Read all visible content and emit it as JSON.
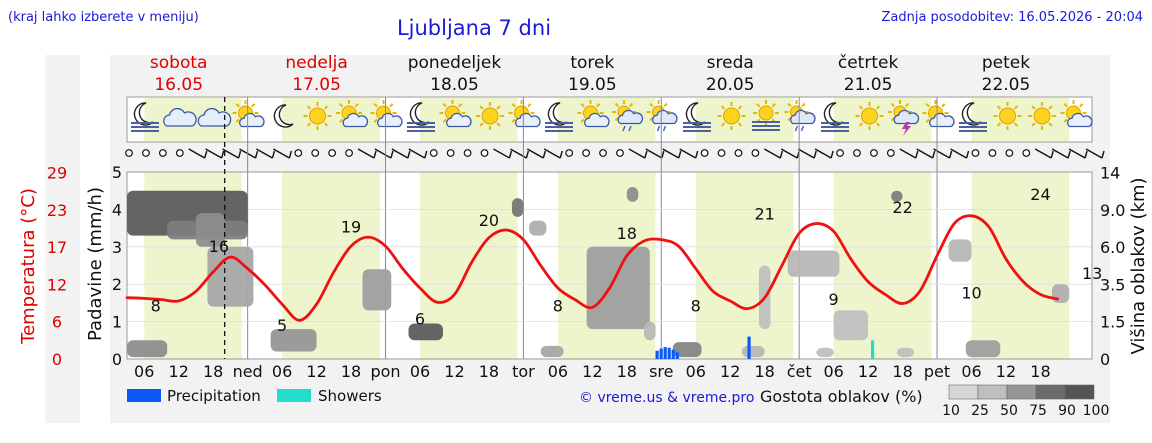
{
  "header": {
    "region_note": "(kraj lahko izberete v meniju)",
    "title": "Ljubljana 7 dni",
    "updated": "Zadnja posodobitev: 16.05.2026 - 20:04"
  },
  "chart_data": {
    "type": "line",
    "x_unit": "hours since 16.05 00:00",
    "days": [
      {
        "name": "sobota",
        "date": "16.05",
        "weekend": true,
        "abbr": ""
      },
      {
        "name": "nedelja",
        "date": "17.05",
        "weekend": true,
        "abbr": "ned"
      },
      {
        "name": "ponedeljek",
        "date": "18.05",
        "weekend": false,
        "abbr": "pon"
      },
      {
        "name": "torek",
        "date": "19.05",
        "weekend": false,
        "abbr": "tor"
      },
      {
        "name": "sreda",
        "date": "20.05",
        "weekend": false,
        "abbr": "sre"
      },
      {
        "name": "četrtek",
        "date": "21.05",
        "weekend": false,
        "abbr": "čet"
      },
      {
        "name": "petek",
        "date": "22.05",
        "weekend": false,
        "abbr": "pet"
      }
    ],
    "hour_ticks": [
      "06",
      "12",
      "18"
    ],
    "now_hour": 20,
    "x_range": [
      3,
      165
    ],
    "left_axis_label": "Padavine (mm/h)",
    "left_ticks": [
      "0",
      "1",
      "2",
      "3",
      "4",
      "5"
    ],
    "temp_axis_label": "Temperatura (°C)",
    "temp_ticks": [
      "0",
      "6",
      "12",
      "17",
      "23",
      "29"
    ],
    "right_axis_label": "Višina oblakov (km)",
    "right_ticks": [
      "0",
      "1.5",
      "3.5",
      "6.0",
      "9.0",
      "14"
    ],
    "series": [
      {
        "name": "Temperatura",
        "color": "#ee1111",
        "x": [
          3,
          6,
          9,
          12,
          15,
          18,
          21,
          24,
          27,
          30,
          33,
          36,
          39,
          42,
          45,
          48,
          51,
          54,
          57,
          60,
          63,
          66,
          69,
          72,
          75,
          78,
          81,
          84,
          87,
          90,
          93,
          96,
          99,
          102,
          105,
          108,
          111,
          114,
          117,
          120,
          123,
          126,
          129,
          132,
          135,
          138,
          141,
          144,
          147,
          150,
          153,
          156,
          159,
          162,
          165
        ],
        "y": [
          9.5,
          9.4,
          9.2,
          9.0,
          10.5,
          13.5,
          15.8,
          14.0,
          11.5,
          8.5,
          6.0,
          8.5,
          13.5,
          17.5,
          18.9,
          17.5,
          14.0,
          11.0,
          8.8,
          10.0,
          15.0,
          18.8,
          20.0,
          18.5,
          14.5,
          11.0,
          9.2,
          8.0,
          11.0,
          16.0,
          18.3,
          18.5,
          17.5,
          14.0,
          10.5,
          9.0,
          7.8,
          9.5,
          14.5,
          19.5,
          21.0,
          19.8,
          15.5,
          12.0,
          10.0,
          8.6,
          10.5,
          16.0,
          21.0,
          22.2,
          20.5,
          15.5,
          12.0,
          10.0,
          9.3
        ],
        "labels": [
          {
            "x": 8,
            "value": "8"
          },
          {
            "x": 19,
            "value": "16"
          },
          {
            "x": 30,
            "value": "5"
          },
          {
            "x": 42,
            "value": "19"
          },
          {
            "x": 54,
            "value": "6"
          },
          {
            "x": 66,
            "value": "20"
          },
          {
            "x": 78,
            "value": "8"
          },
          {
            "x": 90,
            "value": "18"
          },
          {
            "x": 102,
            "value": "8"
          },
          {
            "x": 114,
            "value": "21"
          },
          {
            "x": 126,
            "value": "9"
          },
          {
            "x": 138,
            "value": "22"
          },
          {
            "x": 150,
            "value": "10"
          },
          {
            "x": 162,
            "value": "24"
          },
          {
            "x": 171,
            "value": "13"
          }
        ]
      },
      {
        "name": "Precipitation",
        "color": "#0a5af5",
        "x": [
          95,
          95.7,
          96.4,
          97.1,
          97.8,
          98.5,
          111
        ],
        "y": [
          0.22,
          0.28,
          0.32,
          0.3,
          0.25,
          0.18,
          0.6
        ]
      },
      {
        "name": "Showers",
        "color": "#22dccc",
        "x": [
          132.5
        ],
        "y": [
          0.5
        ]
      }
    ],
    "clouds": [
      {
        "x": 3,
        "y": 3.3,
        "w": 21,
        "h": 1.2,
        "density": 85
      },
      {
        "x": 10,
        "y": 3.2,
        "w": 14,
        "h": 0.5,
        "density": 65
      },
      {
        "x": 15,
        "y": 3.0,
        "w": 5,
        "h": 0.9,
        "density": 55
      },
      {
        "x": 17,
        "y": 1.4,
        "w": 8,
        "h": 1.6,
        "density": 40
      },
      {
        "x": 3,
        "y": 0.05,
        "w": 7,
        "h": 0.45,
        "density": 55
      },
      {
        "x": 28,
        "y": 0.2,
        "w": 8,
        "h": 0.6,
        "density": 50
      },
      {
        "x": 44,
        "y": 1.3,
        "w": 5,
        "h": 1.1,
        "density": 45
      },
      {
        "x": 52,
        "y": 0.5,
        "w": 6,
        "h": 0.45,
        "density": 85
      },
      {
        "x": 70,
        "y": 3.8,
        "w": 2,
        "h": 0.5,
        "density": 70
      },
      {
        "x": 73,
        "y": 3.3,
        "w": 3,
        "h": 0.4,
        "density": 35
      },
      {
        "x": 90,
        "y": 4.2,
        "w": 2,
        "h": 0.4,
        "density": 55
      },
      {
        "x": 83,
        "y": 0.8,
        "w": 11,
        "h": 2.2,
        "density": 45
      },
      {
        "x": 93,
        "y": 0.5,
        "w": 2,
        "h": 0.5,
        "density": 30
      },
      {
        "x": 75,
        "y": 0.05,
        "w": 4,
        "h": 0.3,
        "density": 40
      },
      {
        "x": 98,
        "y": 0.05,
        "w": 5,
        "h": 0.4,
        "density": 60
      },
      {
        "x": 118,
        "y": 2.2,
        "w": 9,
        "h": 0.7,
        "density": 30
      },
      {
        "x": 113,
        "y": 0.8,
        "w": 2,
        "h": 1.7,
        "density": 25
      },
      {
        "x": 110,
        "y": 0.05,
        "w": 4,
        "h": 0.3,
        "density": 30
      },
      {
        "x": 126,
        "y": 0.5,
        "w": 6,
        "h": 0.8,
        "density": 25
      },
      {
        "x": 136,
        "y": 4.2,
        "w": 2,
        "h": 0.3,
        "density": 65
      },
      {
        "x": 146,
        "y": 2.6,
        "w": 4,
        "h": 0.6,
        "density": 30
      },
      {
        "x": 149,
        "y": 0.05,
        "w": 6,
        "h": 0.45,
        "density": 45
      },
      {
        "x": 164,
        "y": 1.5,
        "w": 3,
        "h": 0.5,
        "density": 35
      },
      {
        "x": 123,
        "y": 0.05,
        "w": 3,
        "h": 0.25,
        "density": 25
      },
      {
        "x": 137,
        "y": 0.05,
        "w": 3,
        "h": 0.25,
        "density": 25
      }
    ],
    "weather_icons": [
      "moon-fog",
      "cloud",
      "cloud",
      "sun-cloud",
      "moon",
      "sun",
      "sun-cloud",
      "sun-cloud",
      "moon-fog",
      "sun-cloud",
      "sun",
      "sun-cloud",
      "moon-fog",
      "sun-cloud",
      "rain-cloud",
      "rain-cloud",
      "moon-fog",
      "sun",
      "sun-fog",
      "rain-cloud",
      "moon-fog",
      "sun",
      "thunder",
      "sun-cloud",
      "moon-fog",
      "sun",
      "sun",
      "sun-cloud"
    ],
    "wind_symbols": [
      "calm",
      "calm",
      "calm",
      "calm",
      "barb",
      "barb",
      "barb",
      "barb",
      "barb",
      "barb",
      "calm",
      "calm",
      "calm",
      "calm",
      "barb",
      "barb",
      "barb",
      "barb",
      "calm",
      "calm",
      "calm",
      "calm",
      "barb",
      "barb",
      "barb",
      "barb",
      "calm",
      "calm",
      "calm",
      "calm",
      "barb",
      "barb",
      "barb",
      "barb",
      "calm",
      "calm",
      "calm",
      "calm",
      "barb",
      "barb",
      "barb",
      "barb",
      "calm",
      "calm",
      "calm",
      "calm",
      "barb",
      "barb",
      "barb",
      "barb",
      "calm",
      "calm",
      "calm",
      "calm",
      "barb",
      "barb",
      "barb",
      "barb"
    ],
    "legend": [
      {
        "label": "Precipitation",
        "color": "#0a5af5"
      },
      {
        "label": "Showers",
        "color": "#22dccc"
      }
    ],
    "copyright": "© vreme.us & vreme.pro",
    "density_label": "Gostota oblakov (%)",
    "density_scale": [
      "10",
      "25",
      "50",
      "75",
      "90",
      "100"
    ]
  }
}
